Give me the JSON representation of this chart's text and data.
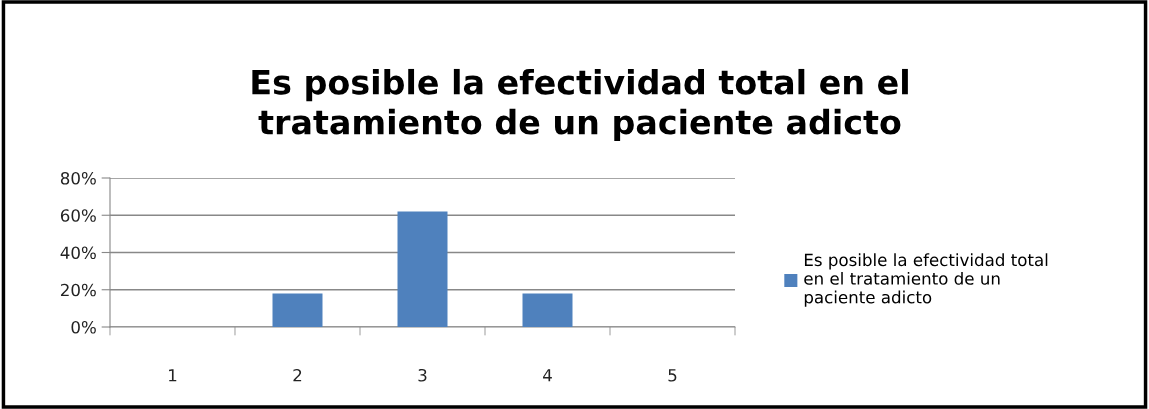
{
  "chart_data": {
    "type": "bar",
    "title": "Es posible la efectividad total en el tratamiento de un paciente adicto",
    "categories": [
      "1",
      "2",
      "3",
      "4",
      "5"
    ],
    "series": [
      {
        "name": "Es posible la efectividad total en el tratamiento de un paciente adicto",
        "color": "#4f81bd",
        "values": [
          0,
          18,
          62,
          18,
          0
        ]
      }
    ],
    "ylim": [
      0,
      80
    ],
    "yticks": [
      {
        "value": 0,
        "label": "0%"
      },
      {
        "value": 20,
        "label": "20%"
      },
      {
        "value": 40,
        "label": "40%"
      },
      {
        "value": 60,
        "label": "60%"
      },
      {
        "value": 80,
        "label": "80%"
      }
    ],
    "grid": "y",
    "legend": "right"
  }
}
